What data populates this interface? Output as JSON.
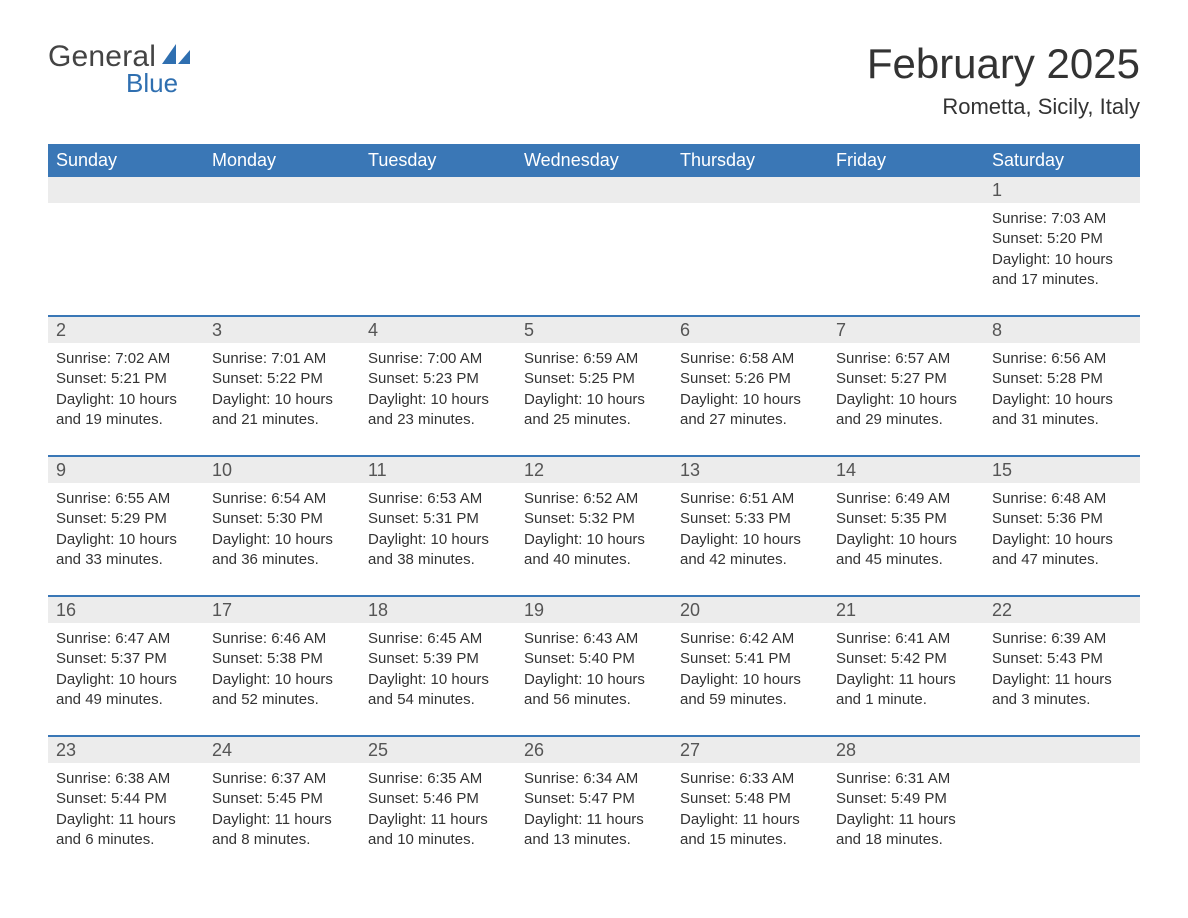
{
  "logo": {
    "general": "General",
    "blue": "Blue"
  },
  "title": "February 2025",
  "location": "Rometta, Sicily, Italy",
  "colors": {
    "header_bg": "#3a77b6",
    "header_text": "#ffffff",
    "daynum_bg": "#ececec",
    "border": "#3a77b6",
    "logo_blue": "#2f6fb0",
    "text": "#333333"
  },
  "weekdays": [
    "Sunday",
    "Monday",
    "Tuesday",
    "Wednesday",
    "Thursday",
    "Friday",
    "Saturday"
  ],
  "weeks": [
    {
      "days": [
        null,
        null,
        null,
        null,
        null,
        null,
        {
          "n": "1",
          "sunrise": "Sunrise: 7:03 AM",
          "sunset": "Sunset: 5:20 PM",
          "day1": "Daylight: 10 hours",
          "day2": "and 17 minutes."
        }
      ]
    },
    {
      "days": [
        {
          "n": "2",
          "sunrise": "Sunrise: 7:02 AM",
          "sunset": "Sunset: 5:21 PM",
          "day1": "Daylight: 10 hours",
          "day2": "and 19 minutes."
        },
        {
          "n": "3",
          "sunrise": "Sunrise: 7:01 AM",
          "sunset": "Sunset: 5:22 PM",
          "day1": "Daylight: 10 hours",
          "day2": "and 21 minutes."
        },
        {
          "n": "4",
          "sunrise": "Sunrise: 7:00 AM",
          "sunset": "Sunset: 5:23 PM",
          "day1": "Daylight: 10 hours",
          "day2": "and 23 minutes."
        },
        {
          "n": "5",
          "sunrise": "Sunrise: 6:59 AM",
          "sunset": "Sunset: 5:25 PM",
          "day1": "Daylight: 10 hours",
          "day2": "and 25 minutes."
        },
        {
          "n": "6",
          "sunrise": "Sunrise: 6:58 AM",
          "sunset": "Sunset: 5:26 PM",
          "day1": "Daylight: 10 hours",
          "day2": "and 27 minutes."
        },
        {
          "n": "7",
          "sunrise": "Sunrise: 6:57 AM",
          "sunset": "Sunset: 5:27 PM",
          "day1": "Daylight: 10 hours",
          "day2": "and 29 minutes."
        },
        {
          "n": "8",
          "sunrise": "Sunrise: 6:56 AM",
          "sunset": "Sunset: 5:28 PM",
          "day1": "Daylight: 10 hours",
          "day2": "and 31 minutes."
        }
      ]
    },
    {
      "days": [
        {
          "n": "9",
          "sunrise": "Sunrise: 6:55 AM",
          "sunset": "Sunset: 5:29 PM",
          "day1": "Daylight: 10 hours",
          "day2": "and 33 minutes."
        },
        {
          "n": "10",
          "sunrise": "Sunrise: 6:54 AM",
          "sunset": "Sunset: 5:30 PM",
          "day1": "Daylight: 10 hours",
          "day2": "and 36 minutes."
        },
        {
          "n": "11",
          "sunrise": "Sunrise: 6:53 AM",
          "sunset": "Sunset: 5:31 PM",
          "day1": "Daylight: 10 hours",
          "day2": "and 38 minutes."
        },
        {
          "n": "12",
          "sunrise": "Sunrise: 6:52 AM",
          "sunset": "Sunset: 5:32 PM",
          "day1": "Daylight: 10 hours",
          "day2": "and 40 minutes."
        },
        {
          "n": "13",
          "sunrise": "Sunrise: 6:51 AM",
          "sunset": "Sunset: 5:33 PM",
          "day1": "Daylight: 10 hours",
          "day2": "and 42 minutes."
        },
        {
          "n": "14",
          "sunrise": "Sunrise: 6:49 AM",
          "sunset": "Sunset: 5:35 PM",
          "day1": "Daylight: 10 hours",
          "day2": "and 45 minutes."
        },
        {
          "n": "15",
          "sunrise": "Sunrise: 6:48 AM",
          "sunset": "Sunset: 5:36 PM",
          "day1": "Daylight: 10 hours",
          "day2": "and 47 minutes."
        }
      ]
    },
    {
      "days": [
        {
          "n": "16",
          "sunrise": "Sunrise: 6:47 AM",
          "sunset": "Sunset: 5:37 PM",
          "day1": "Daylight: 10 hours",
          "day2": "and 49 minutes."
        },
        {
          "n": "17",
          "sunrise": "Sunrise: 6:46 AM",
          "sunset": "Sunset: 5:38 PM",
          "day1": "Daylight: 10 hours",
          "day2": "and 52 minutes."
        },
        {
          "n": "18",
          "sunrise": "Sunrise: 6:45 AM",
          "sunset": "Sunset: 5:39 PM",
          "day1": "Daylight: 10 hours",
          "day2": "and 54 minutes."
        },
        {
          "n": "19",
          "sunrise": "Sunrise: 6:43 AM",
          "sunset": "Sunset: 5:40 PM",
          "day1": "Daylight: 10 hours",
          "day2": "and 56 minutes."
        },
        {
          "n": "20",
          "sunrise": "Sunrise: 6:42 AM",
          "sunset": "Sunset: 5:41 PM",
          "day1": "Daylight: 10 hours",
          "day2": "and 59 minutes."
        },
        {
          "n": "21",
          "sunrise": "Sunrise: 6:41 AM",
          "sunset": "Sunset: 5:42 PM",
          "day1": "Daylight: 11 hours",
          "day2": "and 1 minute."
        },
        {
          "n": "22",
          "sunrise": "Sunrise: 6:39 AM",
          "sunset": "Sunset: 5:43 PM",
          "day1": "Daylight: 11 hours",
          "day2": "and 3 minutes."
        }
      ]
    },
    {
      "days": [
        {
          "n": "23",
          "sunrise": "Sunrise: 6:38 AM",
          "sunset": "Sunset: 5:44 PM",
          "day1": "Daylight: 11 hours",
          "day2": "and 6 minutes."
        },
        {
          "n": "24",
          "sunrise": "Sunrise: 6:37 AM",
          "sunset": "Sunset: 5:45 PM",
          "day1": "Daylight: 11 hours",
          "day2": "and 8 minutes."
        },
        {
          "n": "25",
          "sunrise": "Sunrise: 6:35 AM",
          "sunset": "Sunset: 5:46 PM",
          "day1": "Daylight: 11 hours",
          "day2": "and 10 minutes."
        },
        {
          "n": "26",
          "sunrise": "Sunrise: 6:34 AM",
          "sunset": "Sunset: 5:47 PM",
          "day1": "Daylight: 11 hours",
          "day2": "and 13 minutes."
        },
        {
          "n": "27",
          "sunrise": "Sunrise: 6:33 AM",
          "sunset": "Sunset: 5:48 PM",
          "day1": "Daylight: 11 hours",
          "day2": "and 15 minutes."
        },
        {
          "n": "28",
          "sunrise": "Sunrise: 6:31 AM",
          "sunset": "Sunset: 5:49 PM",
          "day1": "Daylight: 11 hours",
          "day2": "and 18 minutes."
        },
        null
      ]
    }
  ]
}
